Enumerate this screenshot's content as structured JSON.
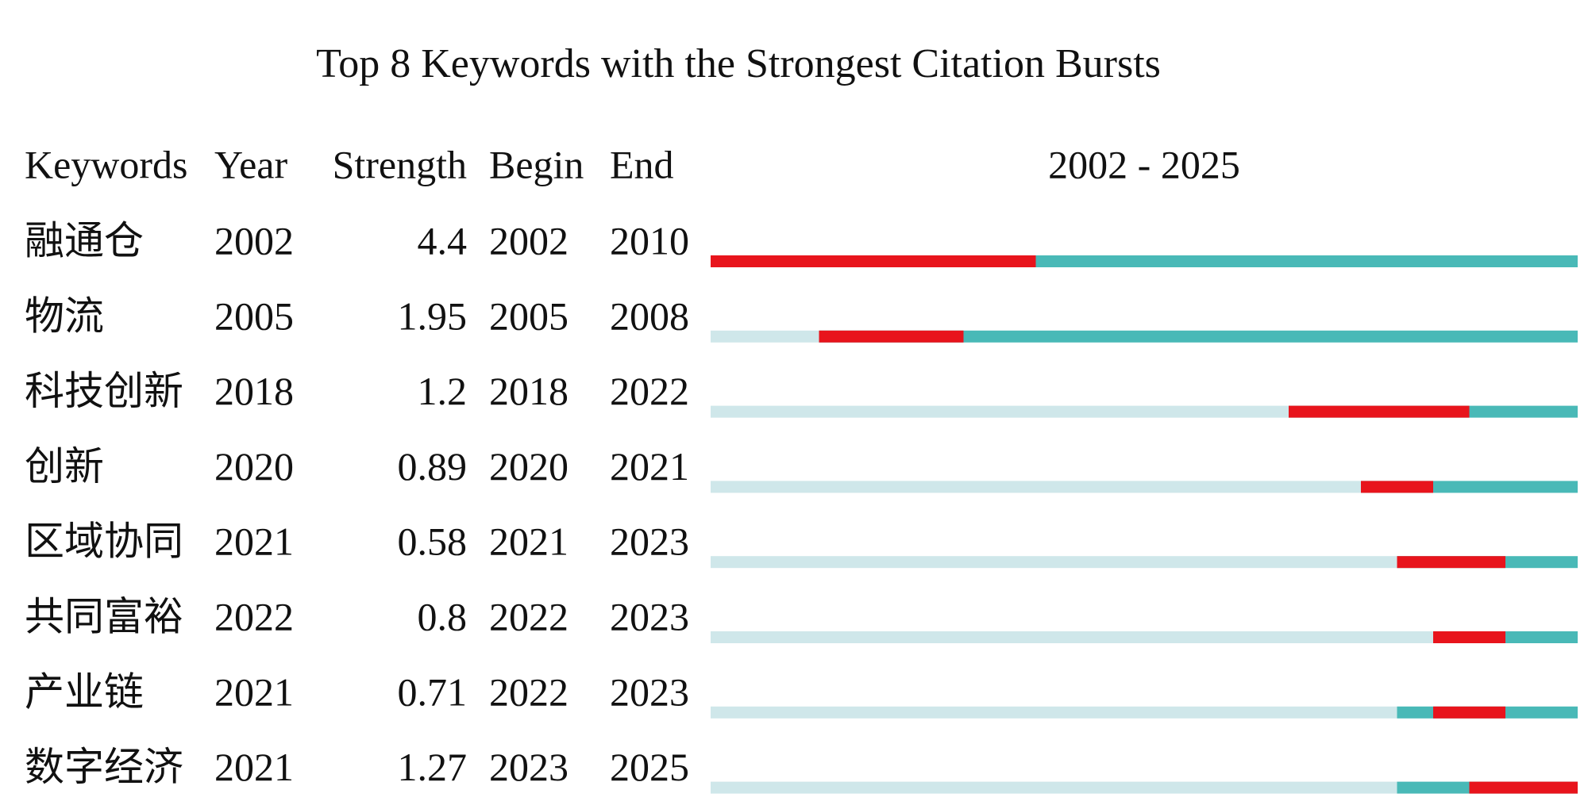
{
  "chart_data": {
    "type": "burst",
    "title": "Top 8 Keywords with the Strongest Citation Bursts",
    "columns": [
      "Keywords",
      "Year",
      "Strength",
      "Begin",
      "End"
    ],
    "range_label": "2002 - 2025",
    "xlim": [
      2002,
      2025
    ],
    "keywords": [
      "融通仓",
      "物流",
      "科技创新",
      "创新",
      "区域协同",
      "共同富裕",
      "产业链",
      "数字经济"
    ],
    "year": [
      2002,
      2005,
      2018,
      2020,
      2021,
      2022,
      2021,
      2021
    ],
    "strength": [
      4.4,
      1.95,
      1.2,
      0.89,
      0.58,
      0.8,
      0.71,
      1.27
    ],
    "begin": [
      2002,
      2005,
      2018,
      2020,
      2021,
      2022,
      2022,
      2023
    ],
    "end": [
      2010,
      2008,
      2022,
      2021,
      2023,
      2023,
      2023,
      2025
    ],
    "burst_color": "#e8141c",
    "active_color": "#49b9b7",
    "inactive_color": "#cfe7ea"
  }
}
